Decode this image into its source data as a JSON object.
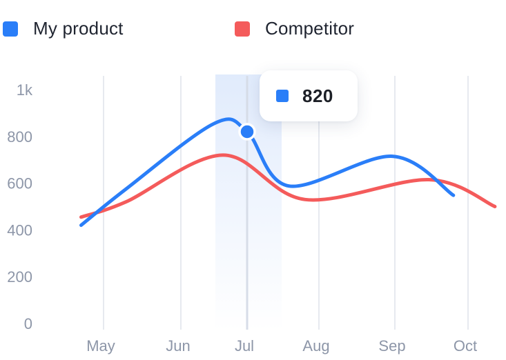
{
  "legend": {
    "items": [
      {
        "label": "My product",
        "color": "#2a7ef8"
      },
      {
        "label": "Competitor",
        "color": "#f45b5b"
      }
    ]
  },
  "tooltip": {
    "value": "820",
    "color": "#2a7ef8",
    "category": "Jul"
  },
  "colors": {
    "grid": "#e6e9ef",
    "highlight": "#dfeafc",
    "tick_text": "#8d96a8"
  },
  "chart_data": {
    "type": "line",
    "smooth": true,
    "title": "",
    "xlabel": "",
    "ylabel": "",
    "categories": [
      "May",
      "Jun",
      "Jul",
      "Aug",
      "Sep",
      "Oct"
    ],
    "y_ticks": [
      "0",
      "200",
      "400",
      "600",
      "800",
      "1k"
    ],
    "ylim": [
      0,
      1000
    ],
    "grid": "vertical",
    "legend_position": "top-left",
    "highlight_category": "Jul",
    "series": [
      {
        "name": "My product",
        "color": "#2a7ef8",
        "points": [
          {
            "x": "2023-04-22",
            "y": 420
          },
          {
            "x": "2023-05-10",
            "y": 575
          },
          {
            "x": "2023-06-16",
            "y": 855
          },
          {
            "x": "2023-07-01",
            "y": 820
          },
          {
            "x": "2023-07-19",
            "y": 588
          },
          {
            "x": "2023-08-31",
            "y": 715
          },
          {
            "x": "2023-09-25",
            "y": 548
          }
        ]
      },
      {
        "name": "Competitor",
        "color": "#f45b5b",
        "points": [
          {
            "x": "2023-04-22",
            "y": 455
          },
          {
            "x": "2023-05-10",
            "y": 520
          },
          {
            "x": "2023-06-20",
            "y": 720
          },
          {
            "x": "2023-07-26",
            "y": 530
          },
          {
            "x": "2023-09-15",
            "y": 615
          },
          {
            "x": "2023-10-12",
            "y": 500
          }
        ]
      }
    ]
  }
}
